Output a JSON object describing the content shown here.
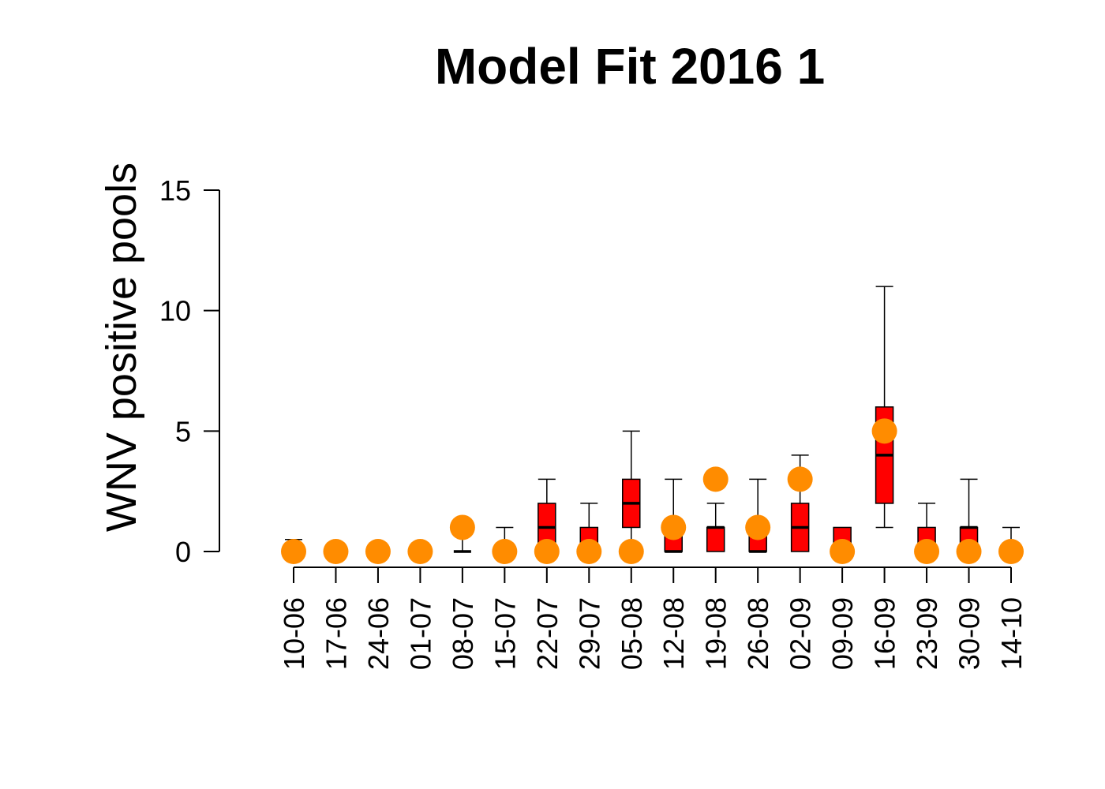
{
  "chart_data": {
    "type": "box",
    "title": "Model Fit 2016 1",
    "xlabel": "",
    "ylabel": "WNV positive pools",
    "ylim": [
      0,
      15
    ],
    "yticks": [
      0,
      5,
      10,
      15
    ],
    "grid": false,
    "categories": [
      "10-06",
      "17-06",
      "24-06",
      "01-07",
      "08-07",
      "15-07",
      "22-07",
      "29-07",
      "05-08",
      "12-08",
      "19-08",
      "26-08",
      "02-09",
      "09-09",
      "16-09",
      "23-09",
      "30-09",
      "14-10"
    ],
    "boxes": [
      {
        "min": 0,
        "q1": 0,
        "median": 0,
        "q3": 0,
        "max": 0.5
      },
      {
        "min": 0,
        "q1": 0,
        "median": 0,
        "q3": 0,
        "max": 0
      },
      {
        "min": 0,
        "q1": 0,
        "median": 0,
        "q3": 0,
        "max": 0
      },
      {
        "min": 0,
        "q1": 0,
        "median": 0,
        "q3": 0,
        "max": 0
      },
      {
        "min": 0,
        "q1": 0,
        "median": 0,
        "q3": 0,
        "max": 1
      },
      {
        "min": 0,
        "q1": 0,
        "median": 0,
        "q3": 0,
        "max": 1
      },
      {
        "min": 0,
        "q1": 0,
        "median": 1,
        "q3": 2,
        "max": 3
      },
      {
        "min": 0,
        "q1": 0,
        "median": 0,
        "q3": 1,
        "max": 2
      },
      {
        "min": 0,
        "q1": 1,
        "median": 2,
        "q3": 3,
        "max": 5
      },
      {
        "min": 0,
        "q1": 0,
        "median": 0,
        "q3": 1,
        "max": 3
      },
      {
        "min": 0,
        "q1": 0,
        "median": 1,
        "q3": 1,
        "max": 2
      },
      {
        "min": 0,
        "q1": 0,
        "median": 0,
        "q3": 1,
        "max": 3
      },
      {
        "min": 0,
        "q1": 0,
        "median": 1,
        "q3": 2,
        "max": 4
      },
      {
        "min": 0,
        "q1": 0,
        "median": 0,
        "q3": 1,
        "max": 1
      },
      {
        "min": 1,
        "q1": 2,
        "median": 4,
        "q3": 6,
        "max": 11
      },
      {
        "min": 0,
        "q1": 0,
        "median": 0,
        "q3": 1,
        "max": 2
      },
      {
        "min": 0,
        "q1": 0,
        "median": 1,
        "q3": 1,
        "max": 3
      },
      {
        "min": 0,
        "q1": 0,
        "median": 0,
        "q3": 0,
        "max": 1
      }
    ],
    "observed": [
      0,
      0,
      0,
      0,
      1,
      0,
      0,
      0,
      0,
      1,
      3,
      1,
      3,
      0,
      5,
      0,
      0,
      0
    ],
    "box_color": "#ff0000",
    "point_color": "#ff8c00"
  }
}
